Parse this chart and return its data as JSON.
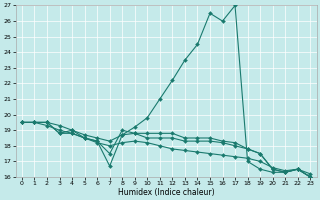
{
  "xlabel": "Humidex (Indice chaleur)",
  "bg_color": "#c5eaea",
  "line_color": "#1a7a6e",
  "grid_color": "#ffffff",
  "xlim": [
    -0.5,
    23.5
  ],
  "ylim": [
    16,
    27
  ],
  "yticks": [
    16,
    17,
    18,
    19,
    20,
    21,
    22,
    23,
    24,
    25,
    26,
    27
  ],
  "xticks": [
    0,
    1,
    2,
    3,
    4,
    5,
    6,
    7,
    8,
    9,
    10,
    11,
    12,
    13,
    14,
    15,
    16,
    17,
    18,
    19,
    20,
    21,
    22,
    23
  ],
  "line_peak_x": [
    0,
    1,
    2,
    3,
    4,
    5,
    6,
    7,
    8,
    9,
    10,
    11,
    12,
    13,
    14,
    15,
    16,
    17,
    18,
    19,
    20,
    21,
    22,
    23
  ],
  "line_peak_y": [
    19.5,
    19.5,
    19.5,
    19.3,
    19.0,
    18.7,
    18.5,
    18.3,
    18.7,
    19.2,
    19.8,
    21.0,
    22.2,
    23.5,
    24.5,
    26.5,
    26.0,
    27.0,
    17.0,
    16.5,
    16.3,
    16.3,
    16.5,
    16.0
  ],
  "line_mid1_x": [
    0,
    1,
    2,
    3,
    4,
    5,
    6,
    7,
    8,
    9,
    10,
    11,
    12,
    13,
    14,
    15,
    16,
    17,
    18,
    19,
    20,
    21,
    22,
    23
  ],
  "line_mid1_y": [
    19.5,
    19.5,
    19.5,
    18.8,
    18.8,
    18.5,
    18.3,
    16.7,
    18.7,
    18.8,
    18.5,
    18.5,
    18.5,
    18.3,
    18.3,
    18.3,
    18.2,
    18.0,
    17.8,
    17.5,
    16.5,
    16.3,
    16.5,
    16.0
  ],
  "line_mid2_x": [
    0,
    1,
    2,
    3,
    4,
    5,
    6,
    7,
    8,
    9,
    10,
    11,
    12,
    13,
    14,
    15,
    16,
    17,
    18,
    19,
    20,
    21,
    22,
    23
  ],
  "line_mid2_y": [
    19.5,
    19.5,
    19.5,
    18.8,
    19.0,
    18.5,
    18.3,
    17.5,
    19.0,
    18.8,
    18.8,
    18.8,
    18.8,
    18.5,
    18.5,
    18.5,
    18.3,
    18.2,
    17.8,
    17.5,
    16.5,
    16.3,
    16.5,
    16.2
  ],
  "line_low_x": [
    0,
    1,
    2,
    3,
    4,
    5,
    6,
    7,
    8,
    9,
    10,
    11,
    12,
    13,
    14,
    15,
    16,
    17,
    18,
    19,
    20,
    21,
    22,
    23
  ],
  "line_low_y": [
    19.5,
    19.5,
    19.3,
    19.0,
    18.8,
    18.5,
    18.2,
    18.0,
    18.2,
    18.3,
    18.2,
    18.0,
    17.8,
    17.7,
    17.6,
    17.5,
    17.4,
    17.3,
    17.2,
    17.0,
    16.6,
    16.4,
    16.5,
    16.0
  ]
}
